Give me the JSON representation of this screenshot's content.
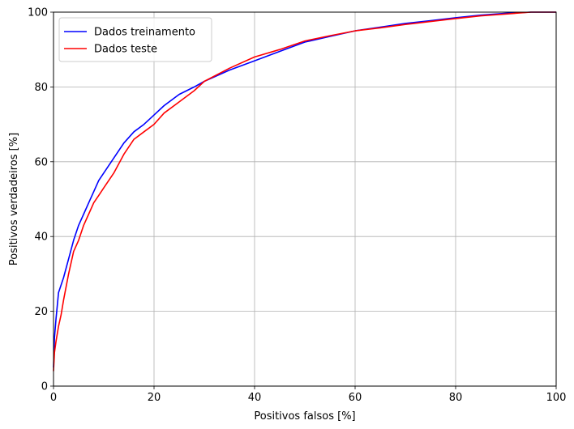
{
  "chart_data": {
    "type": "line",
    "title": "",
    "xlabel": "Positivos falsos [%]",
    "ylabel": "Positivos verdadeiros [%]",
    "xlim": [
      0,
      100
    ],
    "ylim": [
      0,
      100
    ],
    "xticks": [
      0,
      20,
      40,
      60,
      80,
      100
    ],
    "yticks": [
      0,
      20,
      40,
      60,
      80,
      100
    ],
    "grid": true,
    "legend_position": "top-left",
    "series": [
      {
        "name": "Dados treinamento",
        "color": "#0000ff",
        "x": [
          0,
          0.2,
          0.5,
          1,
          1.5,
          2,
          3,
          4,
          5,
          6,
          7,
          8,
          9,
          10,
          12,
          14,
          16,
          18,
          20,
          22,
          25,
          28,
          30,
          35,
          40,
          45,
          50,
          55,
          60,
          65,
          70,
          75,
          80,
          85,
          90,
          95,
          100
        ],
        "y": [
          5,
          13,
          18,
          25,
          27,
          29,
          34,
          39,
          43,
          46,
          49,
          52,
          55,
          57,
          61,
          65,
          68,
          70,
          72.5,
          75,
          78,
          80,
          81.5,
          84.5,
          87,
          89.5,
          92,
          93.5,
          95,
          96,
          97,
          97.7,
          98.5,
          99.2,
          99.7,
          100,
          100
        ]
      },
      {
        "name": "Dados teste",
        "color": "#ff0000",
        "x": [
          0,
          0.2,
          0.5,
          1,
          1.5,
          2,
          3,
          4,
          5,
          6,
          7,
          8,
          9,
          10,
          12,
          14,
          16,
          18,
          20,
          22,
          25,
          28,
          30,
          35,
          40,
          45,
          50,
          55,
          60,
          65,
          70,
          75,
          80,
          85,
          90,
          95,
          100
        ],
        "y": [
          4,
          9,
          12,
          16,
          19,
          23,
          30,
          36,
          39,
          43,
          46,
          49,
          51,
          53,
          57,
          62,
          66,
          68,
          70,
          73,
          76,
          79,
          81.5,
          85,
          88,
          90,
          92.3,
          93.7,
          95,
          95.8,
          96.7,
          97.5,
          98.3,
          99,
          99.5,
          100,
          100
        ]
      }
    ]
  }
}
